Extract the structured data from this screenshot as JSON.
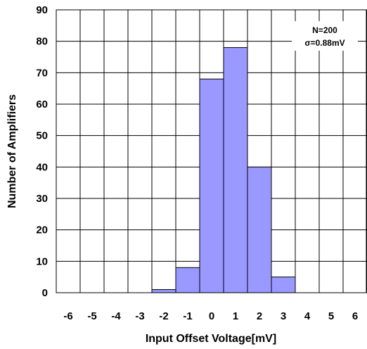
{
  "chart_data": {
    "type": "bar",
    "title": "",
    "xlabel": "Input Offset Voltage[mV]",
    "ylabel": "Number of Amplifiers",
    "xlim": [
      -6.5,
      6.5
    ],
    "ylim": [
      0,
      90
    ],
    "x_ticks": [
      "-6",
      "-5",
      "-4",
      "-3",
      "-2",
      "-1",
      "0",
      "1",
      "2",
      "3",
      "4",
      "5",
      "6"
    ],
    "y_ticks": [
      "0",
      "10",
      "20",
      "30",
      "40",
      "50",
      "60",
      "70",
      "80",
      "90"
    ],
    "grid": true,
    "categories": [
      "-6",
      "-5",
      "-4",
      "-3",
      "-2",
      "-1",
      "0",
      "1",
      "2",
      "3",
      "4",
      "5",
      "6"
    ],
    "values": [
      0,
      0,
      0,
      0,
      1,
      8,
      68,
      78,
      40,
      5,
      0,
      0,
      0
    ],
    "annotation": {
      "line1": "N=200",
      "line2": "σ=0.88mV"
    },
    "colors": {
      "bar_fill": "#9999ff",
      "bar_stroke": "#000000",
      "grid": "#000000",
      "background": "#ffffff"
    }
  }
}
